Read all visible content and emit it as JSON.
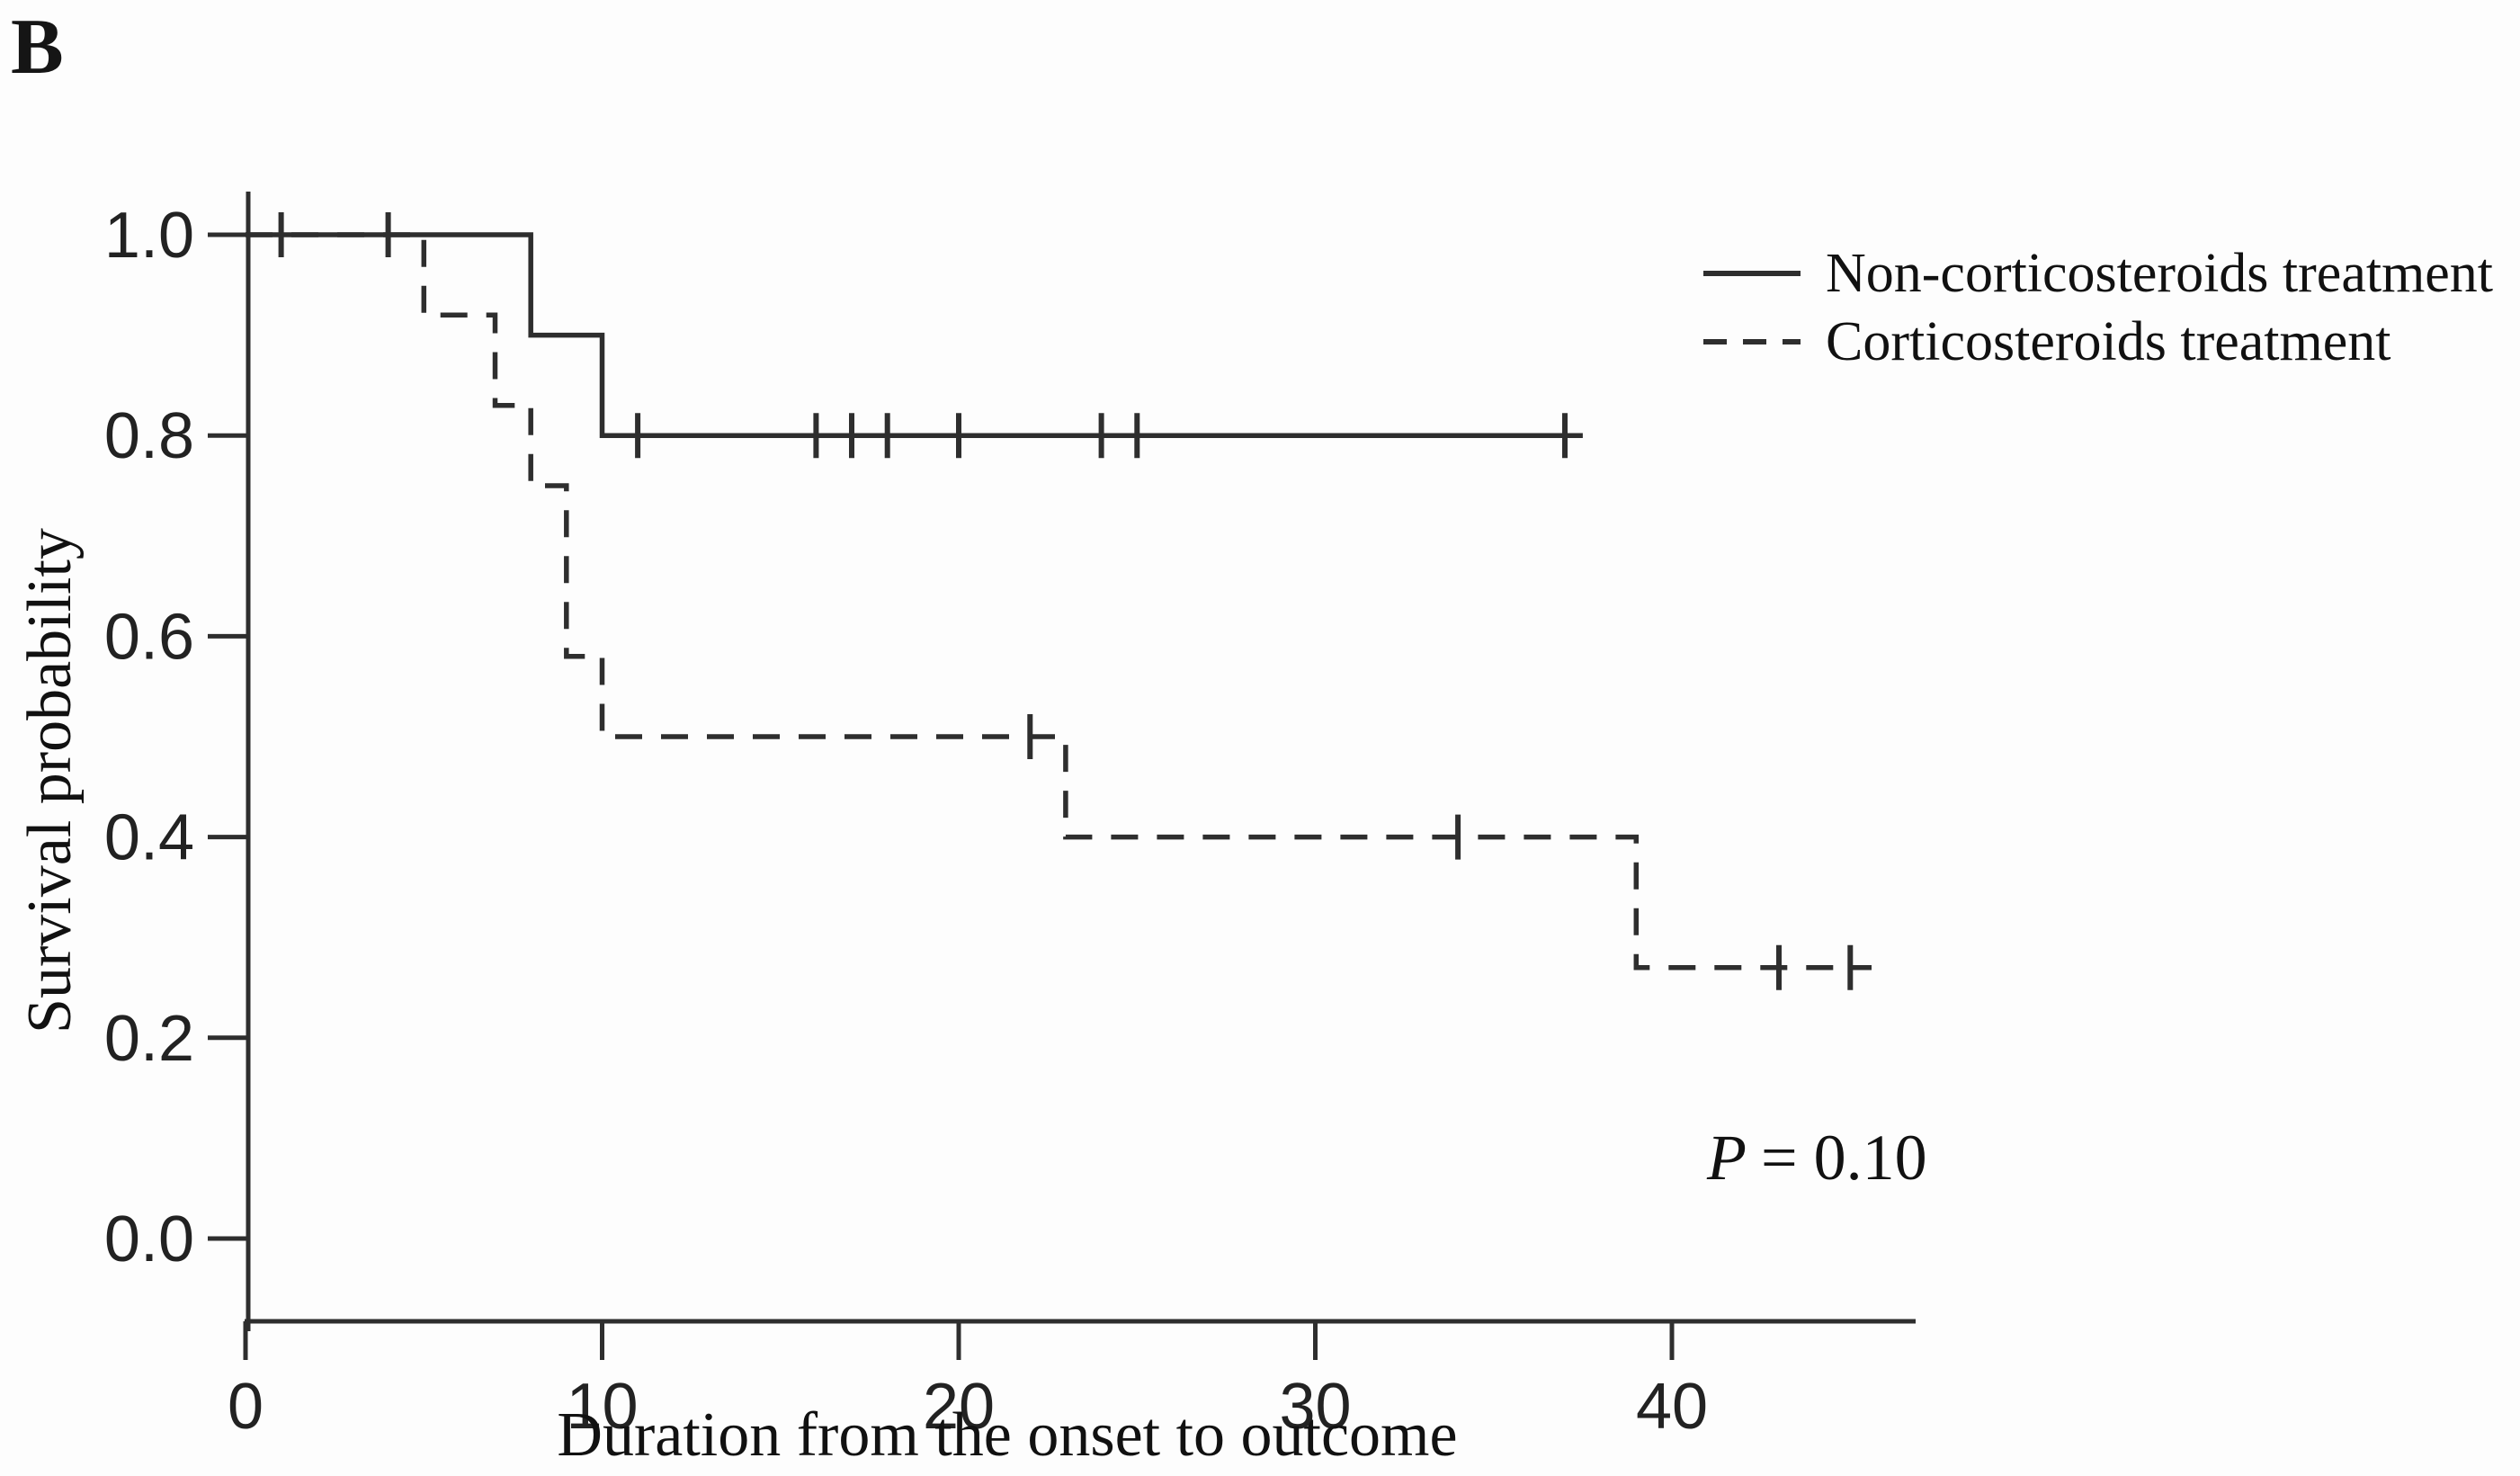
{
  "chart_data": {
    "type": "line",
    "subtype": "kaplan-meier-step",
    "panel_label": "B",
    "xlabel": "Duration from the onset to outcome",
    "ylabel": "Survival probability",
    "xlim": [
      0,
      46.8
    ],
    "ylim": [
      0.0,
      1.05
    ],
    "grid": false,
    "legend_position": "top-right",
    "line_color": "#2e2e2e",
    "xticks": [
      {
        "v": 0,
        "label": "0"
      },
      {
        "v": 10,
        "label": "10"
      },
      {
        "v": 20,
        "label": "20"
      },
      {
        "v": 30,
        "label": "30"
      },
      {
        "v": 40,
        "label": "40"
      }
    ],
    "yticks": [
      {
        "v": 1.0,
        "label": "1.0"
      },
      {
        "v": 0.8,
        "label": "0.8"
      },
      {
        "v": 0.6,
        "label": "0.6"
      },
      {
        "v": 0.4,
        "label": "0.4"
      },
      {
        "v": 0.2,
        "label": "0.2"
      },
      {
        "v": 0.0,
        "label": "0.0"
      }
    ],
    "annotation": {
      "symbol": "P",
      "rest": "= 0.10"
    },
    "series": [
      {
        "name": "Non-corticosteroids treatment",
        "line_style": "solid",
        "color": "#2e2e2e",
        "steps": [
          [
            0,
            1.0
          ],
          [
            8,
            1.0
          ],
          [
            8,
            0.9
          ],
          [
            10,
            0.9
          ],
          [
            10,
            0.8
          ],
          [
            37.5,
            0.8
          ]
        ],
        "censor_marks": [
          [
            1,
            1.0
          ],
          [
            4,
            1.0
          ],
          [
            11,
            0.8
          ],
          [
            16,
            0.8
          ],
          [
            17,
            0.8
          ],
          [
            18,
            0.8
          ],
          [
            20,
            0.8
          ],
          [
            24,
            0.8
          ],
          [
            25,
            0.8
          ],
          [
            37,
            0.8
          ]
        ]
      },
      {
        "name": "Corticosteroids treatment",
        "line_style": "dashed",
        "color": "#2e2e2e",
        "steps": [
          [
            0,
            1.0
          ],
          [
            5,
            1.0
          ],
          [
            5,
            0.92
          ],
          [
            7,
            0.92
          ],
          [
            7,
            0.83
          ],
          [
            8,
            0.83
          ],
          [
            8,
            0.75
          ],
          [
            9,
            0.75
          ],
          [
            9,
            0.58
          ],
          [
            10,
            0.58
          ],
          [
            10,
            0.5
          ],
          [
            23,
            0.5
          ],
          [
            23,
            0.4
          ],
          [
            39,
            0.4
          ],
          [
            39,
            0.27
          ],
          [
            45.6,
            0.27
          ]
        ],
        "censor_marks": [
          [
            22,
            0.5
          ],
          [
            34,
            0.4
          ],
          [
            43,
            0.27
          ],
          [
            45,
            0.27
          ]
        ]
      }
    ]
  }
}
